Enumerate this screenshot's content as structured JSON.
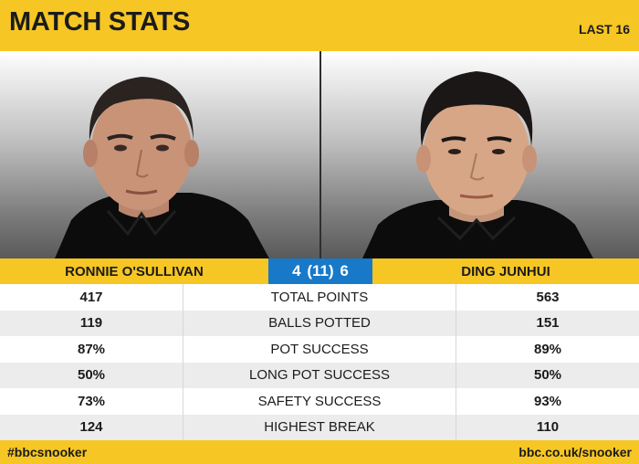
{
  "header": {
    "title": "MATCH STATS",
    "round": "LAST 16"
  },
  "players": {
    "left": {
      "name": "RONNIE O'SULLIVAN"
    },
    "right": {
      "name": "DING JUNHUI"
    }
  },
  "score": {
    "text": "4 (11) 6",
    "left_frames": 4,
    "best_of": 11,
    "right_frames": 6
  },
  "stats": [
    {
      "label": "TOTAL POINTS",
      "left": "417",
      "right": "563"
    },
    {
      "label": "BALLS POTTED",
      "left": "119",
      "right": "151"
    },
    {
      "label": "POT SUCCESS",
      "left": "87%",
      "right": "89%"
    },
    {
      "label": "LONG POT SUCCESS",
      "left": "50%",
      "right": "50%"
    },
    {
      "label": "SAFETY SUCCESS",
      "left": "73%",
      "right": "93%"
    },
    {
      "label": "HIGHEST BREAK",
      "left": "124",
      "right": "110"
    }
  ],
  "footer": {
    "hashtag": "#bbcsnooker",
    "url": "bbc.co.uk/snooker"
  },
  "colors": {
    "accent": "#f6c624",
    "score_box": "#1779c8",
    "text": "#1b1b1b"
  }
}
